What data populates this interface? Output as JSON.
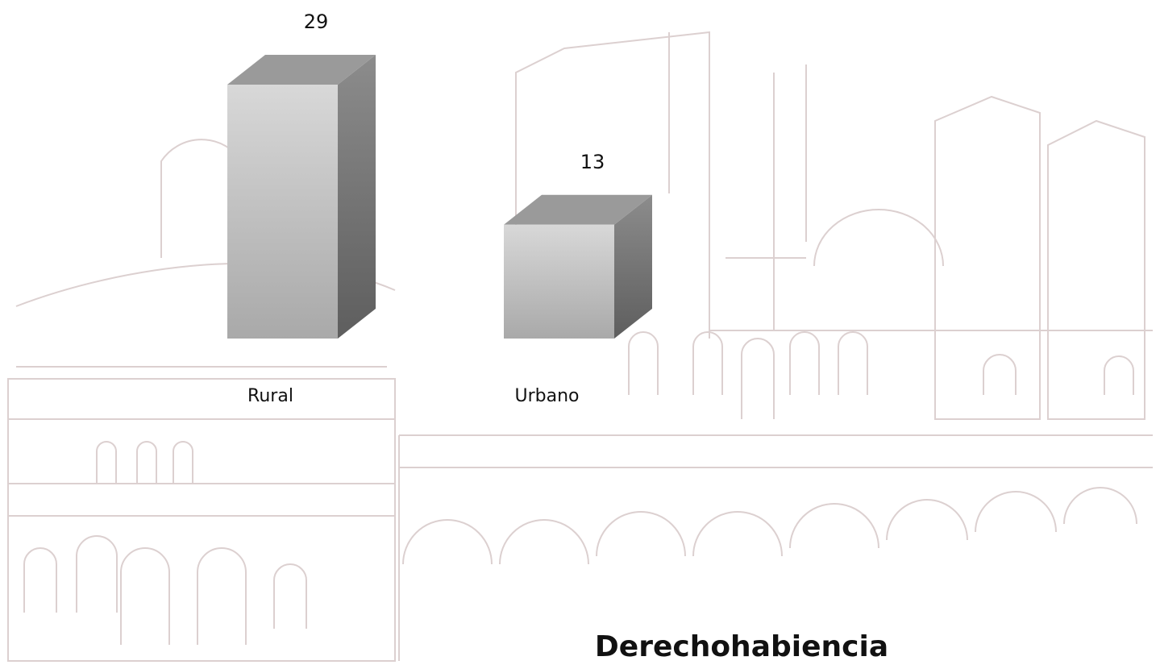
{
  "chart_data": {
    "type": "bar3d",
    "title": "Derechohabiencia",
    "categories": [
      "Rural",
      "Urbano"
    ],
    "values": [
      29,
      13
    ]
  }
}
